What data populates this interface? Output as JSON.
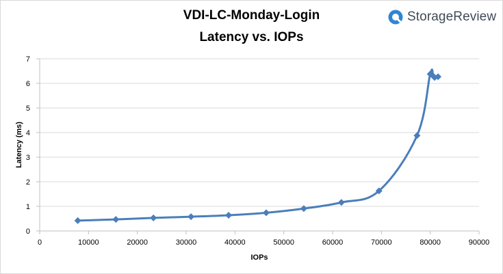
{
  "chart_data": {
    "type": "line",
    "title": "VDI-LC-Monday-Login",
    "subtitle": "Latency vs. IOPs",
    "xlabel": "IOPs",
    "ylabel": "Latency (ms)",
    "xlim": [
      0,
      90000
    ],
    "ylim": [
      0,
      7
    ],
    "xticks": [
      0,
      10000,
      20000,
      30000,
      40000,
      50000,
      60000,
      70000,
      80000,
      90000
    ],
    "yticks": [
      0,
      1,
      2,
      3,
      4,
      5,
      6,
      7
    ],
    "grid": "horizontal",
    "legend": "none",
    "series": [
      {
        "color": "#4a7ebb",
        "marker": "diamond",
        "points": [
          {
            "x": 7800,
            "y": 0.42
          },
          {
            "x": 15600,
            "y": 0.47
          },
          {
            "x": 23300,
            "y": 0.53
          },
          {
            "x": 31000,
            "y": 0.58
          },
          {
            "x": 38700,
            "y": 0.64
          },
          {
            "x": 46400,
            "y": 0.74
          },
          {
            "x": 54100,
            "y": 0.91
          },
          {
            "x": 61800,
            "y": 1.16
          },
          {
            "x": 69500,
            "y": 1.63
          },
          {
            "x": 77300,
            "y": 3.88
          },
          {
            "x": 80000,
            "y": 6.38
          },
          {
            "x": 80600,
            "y": 6.3
          },
          {
            "x": 80900,
            "y": 6.24
          },
          {
            "x": 81600,
            "y": 6.27
          }
        ]
      }
    ]
  },
  "brand": {
    "name": "StorageReview",
    "logo_icon": "storagereview-logo-icon",
    "logo_color": "#2f86d2"
  }
}
